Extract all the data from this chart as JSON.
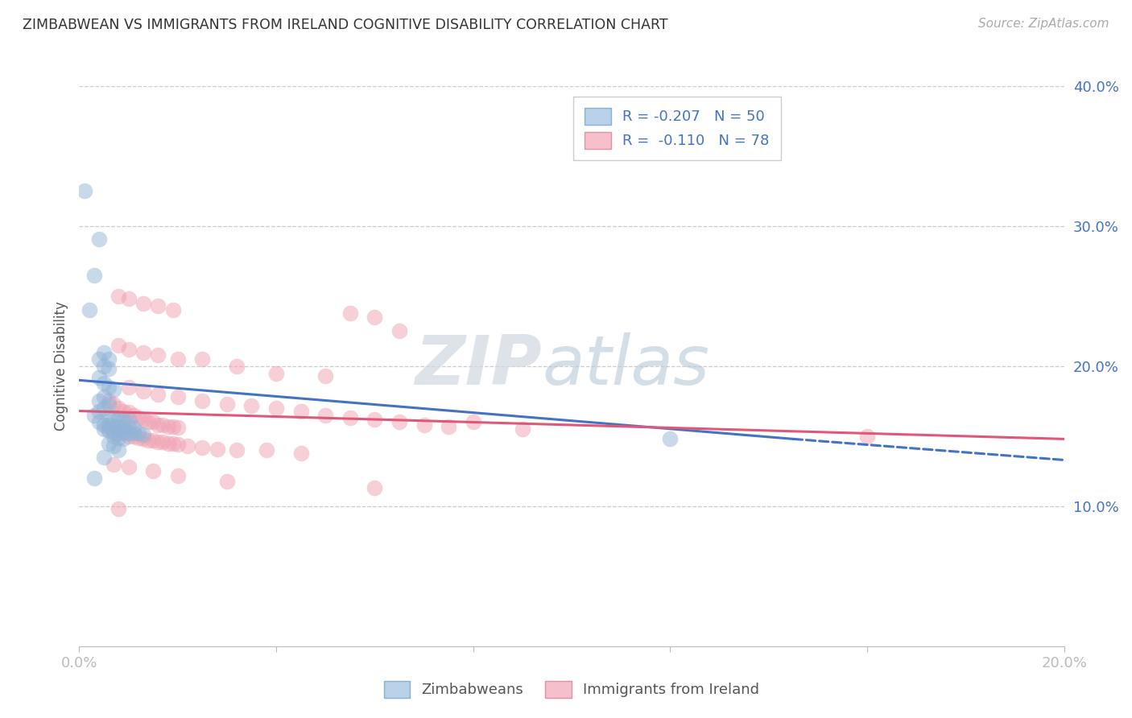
{
  "title": "ZIMBABWEAN VS IMMIGRANTS FROM IRELAND COGNITIVE DISABILITY CORRELATION CHART",
  "source": "Source: ZipAtlas.com",
  "ylabel": "Cognitive Disability",
  "x_min": 0.0,
  "x_max": 0.2,
  "y_min": 0.0,
  "y_max": 0.4,
  "y_ticks": [
    0.1,
    0.2,
    0.3,
    0.4
  ],
  "y_tick_labels": [
    "10.0%",
    "20.0%",
    "30.0%",
    "40.0%"
  ],
  "zim_color": "#92b4d7",
  "ireland_color": "#f0a0b0",
  "watermark_zip": "ZIP",
  "watermark_atlas": "atlas",
  "zim_scatter": [
    [
      0.001,
      0.325
    ],
    [
      0.004,
      0.291
    ],
    [
      0.003,
      0.265
    ],
    [
      0.002,
      0.24
    ],
    [
      0.005,
      0.21
    ],
    [
      0.004,
      0.205
    ],
    [
      0.006,
      0.205
    ],
    [
      0.005,
      0.2
    ],
    [
      0.006,
      0.198
    ],
    [
      0.004,
      0.192
    ],
    [
      0.005,
      0.188
    ],
    [
      0.006,
      0.185
    ],
    [
      0.007,
      0.183
    ],
    [
      0.005,
      0.178
    ],
    [
      0.004,
      0.175
    ],
    [
      0.006,
      0.173
    ],
    [
      0.005,
      0.17
    ],
    [
      0.004,
      0.168
    ],
    [
      0.003,
      0.165
    ],
    [
      0.006,
      0.163
    ],
    [
      0.007,
      0.163
    ],
    [
      0.008,
      0.163
    ],
    [
      0.009,
      0.162
    ],
    [
      0.01,
      0.162
    ],
    [
      0.004,
      0.16
    ],
    [
      0.005,
      0.158
    ],
    [
      0.006,
      0.158
    ],
    [
      0.007,
      0.157
    ],
    [
      0.008,
      0.157
    ],
    [
      0.009,
      0.157
    ],
    [
      0.01,
      0.156
    ],
    [
      0.011,
      0.156
    ],
    [
      0.005,
      0.155
    ],
    [
      0.006,
      0.154
    ],
    [
      0.007,
      0.154
    ],
    [
      0.008,
      0.153
    ],
    [
      0.009,
      0.153
    ],
    [
      0.01,
      0.152
    ],
    [
      0.011,
      0.152
    ],
    [
      0.012,
      0.152
    ],
    [
      0.013,
      0.151
    ],
    [
      0.007,
      0.15
    ],
    [
      0.008,
      0.149
    ],
    [
      0.009,
      0.148
    ],
    [
      0.006,
      0.145
    ],
    [
      0.007,
      0.143
    ],
    [
      0.008,
      0.14
    ],
    [
      0.005,
      0.135
    ],
    [
      0.003,
      0.12
    ],
    [
      0.12,
      0.148
    ]
  ],
  "ireland_scatter": [
    [
      0.008,
      0.25
    ],
    [
      0.01,
      0.248
    ],
    [
      0.013,
      0.245
    ],
    [
      0.016,
      0.243
    ],
    [
      0.019,
      0.24
    ],
    [
      0.055,
      0.238
    ],
    [
      0.06,
      0.235
    ],
    [
      0.065,
      0.225
    ],
    [
      0.008,
      0.215
    ],
    [
      0.01,
      0.212
    ],
    [
      0.013,
      0.21
    ],
    [
      0.016,
      0.208
    ],
    [
      0.02,
      0.205
    ],
    [
      0.025,
      0.205
    ],
    [
      0.032,
      0.2
    ],
    [
      0.04,
      0.195
    ],
    [
      0.05,
      0.193
    ],
    [
      0.01,
      0.185
    ],
    [
      0.013,
      0.182
    ],
    [
      0.016,
      0.18
    ],
    [
      0.02,
      0.178
    ],
    [
      0.025,
      0.175
    ],
    [
      0.03,
      0.173
    ],
    [
      0.035,
      0.172
    ],
    [
      0.04,
      0.17
    ],
    [
      0.045,
      0.168
    ],
    [
      0.05,
      0.165
    ],
    [
      0.055,
      0.163
    ],
    [
      0.06,
      0.162
    ],
    [
      0.065,
      0.16
    ],
    [
      0.07,
      0.158
    ],
    [
      0.075,
      0.157
    ],
    [
      0.08,
      0.16
    ],
    [
      0.09,
      0.155
    ],
    [
      0.006,
      0.175
    ],
    [
      0.007,
      0.173
    ],
    [
      0.008,
      0.17
    ],
    [
      0.009,
      0.168
    ],
    [
      0.01,
      0.167
    ],
    [
      0.011,
      0.165
    ],
    [
      0.012,
      0.163
    ],
    [
      0.013,
      0.162
    ],
    [
      0.014,
      0.16
    ],
    [
      0.015,
      0.16
    ],
    [
      0.016,
      0.158
    ],
    [
      0.017,
      0.158
    ],
    [
      0.018,
      0.157
    ],
    [
      0.019,
      0.157
    ],
    [
      0.02,
      0.156
    ],
    [
      0.006,
      0.155
    ],
    [
      0.007,
      0.153
    ],
    [
      0.008,
      0.152
    ],
    [
      0.009,
      0.152
    ],
    [
      0.01,
      0.15
    ],
    [
      0.011,
      0.15
    ],
    [
      0.012,
      0.149
    ],
    [
      0.013,
      0.148
    ],
    [
      0.014,
      0.147
    ],
    [
      0.015,
      0.147
    ],
    [
      0.016,
      0.146
    ],
    [
      0.017,
      0.146
    ],
    [
      0.018,
      0.145
    ],
    [
      0.019,
      0.145
    ],
    [
      0.02,
      0.144
    ],
    [
      0.022,
      0.143
    ],
    [
      0.025,
      0.142
    ],
    [
      0.028,
      0.141
    ],
    [
      0.032,
      0.14
    ],
    [
      0.038,
      0.14
    ],
    [
      0.045,
      0.138
    ],
    [
      0.007,
      0.13
    ],
    [
      0.01,
      0.128
    ],
    [
      0.015,
      0.125
    ],
    [
      0.02,
      0.122
    ],
    [
      0.03,
      0.118
    ],
    [
      0.06,
      0.113
    ],
    [
      0.008,
      0.098
    ],
    [
      0.16,
      0.15
    ]
  ],
  "zim_line": {
    "x0": 0.0,
    "x1": 0.145,
    "y0": 0.19,
    "y1": 0.148
  },
  "zim_line_dashed": {
    "x0": 0.145,
    "x1": 0.2,
    "y0": 0.148,
    "y1": 0.133
  },
  "ireland_line": {
    "x0": 0.0,
    "x1": 0.2,
    "y0": 0.168,
    "y1": 0.148
  }
}
